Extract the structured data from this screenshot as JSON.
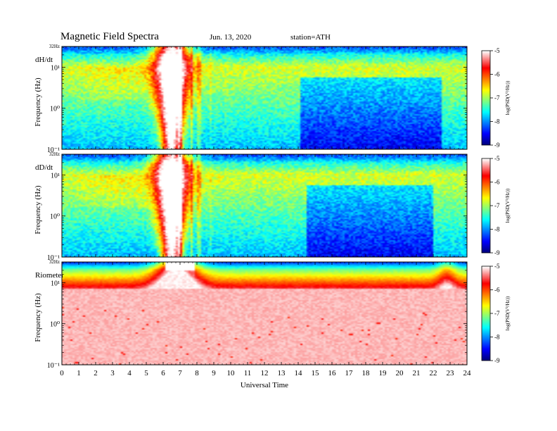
{
  "header": {
    "title": "Magnetic  Field  Spectra",
    "date": "Jun. 13, 2020",
    "station": "station=ATH"
  },
  "chart_data": [
    {
      "type": "heatmap",
      "panel_label": "dH/dt",
      "ylabel": "Frequency  (Hz)",
      "top_label": "32Hz",
      "y_scale": "log",
      "ylim": [
        0.1,
        32
      ],
      "y_ticks": [
        {
          "value": 0.1,
          "label": "10⁻¹"
        },
        {
          "value": 1,
          "label": "10⁰"
        },
        {
          "value": 10,
          "label": "10¹"
        }
      ],
      "xlim": [
        0,
        24
      ],
      "colorbar": {
        "label": "log(PSD(V²/Hz))",
        "range": [
          -9,
          -5
        ],
        "ticks": [
          "-5",
          "-6",
          "-7",
          "-8",
          "-9"
        ]
      },
      "features": {
        "burst_start": 5.8,
        "burst_end": 8.0,
        "burst_peak": 6.5,
        "quiet_band_start": 14.1,
        "quiet_band_end": 22.5
      }
    },
    {
      "type": "heatmap",
      "panel_label": "dD/dt",
      "ylabel": "Frequency  (Hz)",
      "top_label": "32Hz",
      "y_scale": "log",
      "ylim": [
        0.1,
        32
      ],
      "y_ticks": [
        {
          "value": 0.1,
          "label": "10⁻¹"
        },
        {
          "value": 1,
          "label": "10⁰"
        },
        {
          "value": 10,
          "label": "10¹"
        }
      ],
      "xlim": [
        0,
        24
      ],
      "colorbar": {
        "label": "log(PSD(V²/Hz))",
        "range": [
          -9,
          -5
        ],
        "ticks": [
          "-5",
          "-6",
          "-7",
          "-8",
          "-9"
        ]
      },
      "features": {
        "burst_start": 5.5,
        "burst_end": 8.3,
        "burst_peak": 6.5,
        "quiet_band_start": 14.5,
        "quiet_band_end": 22.0
      }
    },
    {
      "type": "heatmap",
      "panel_label": "Riometer",
      "ylabel": "Frequency  (Hz)",
      "top_label": "32Hz",
      "y_scale": "log",
      "ylim": [
        0.1,
        32
      ],
      "y_ticks": [
        {
          "value": 0.1,
          "label": "10⁻¹"
        },
        {
          "value": 1,
          "label": "10⁰"
        },
        {
          "value": 10,
          "label": "10¹"
        }
      ],
      "xlim": [
        0,
        24
      ],
      "xlabel": "Universal Time",
      "x_ticks": [
        "0",
        "1",
        "2",
        "3",
        "4",
        "5",
        "6",
        "7",
        "8",
        "9",
        "10",
        "11",
        "12",
        "13",
        "14",
        "15",
        "16",
        "17",
        "18",
        "19",
        "20",
        "21",
        "22",
        "23",
        "24"
      ],
      "colorbar": {
        "label": "log(PSD(V²/Hz))",
        "range": [
          -9,
          -5
        ],
        "ticks": [
          "-5",
          "-6",
          "-7",
          "-8",
          "-9"
        ]
      },
      "features": {
        "saturation_start": 6.1,
        "saturation_end": 7.9
      }
    }
  ]
}
